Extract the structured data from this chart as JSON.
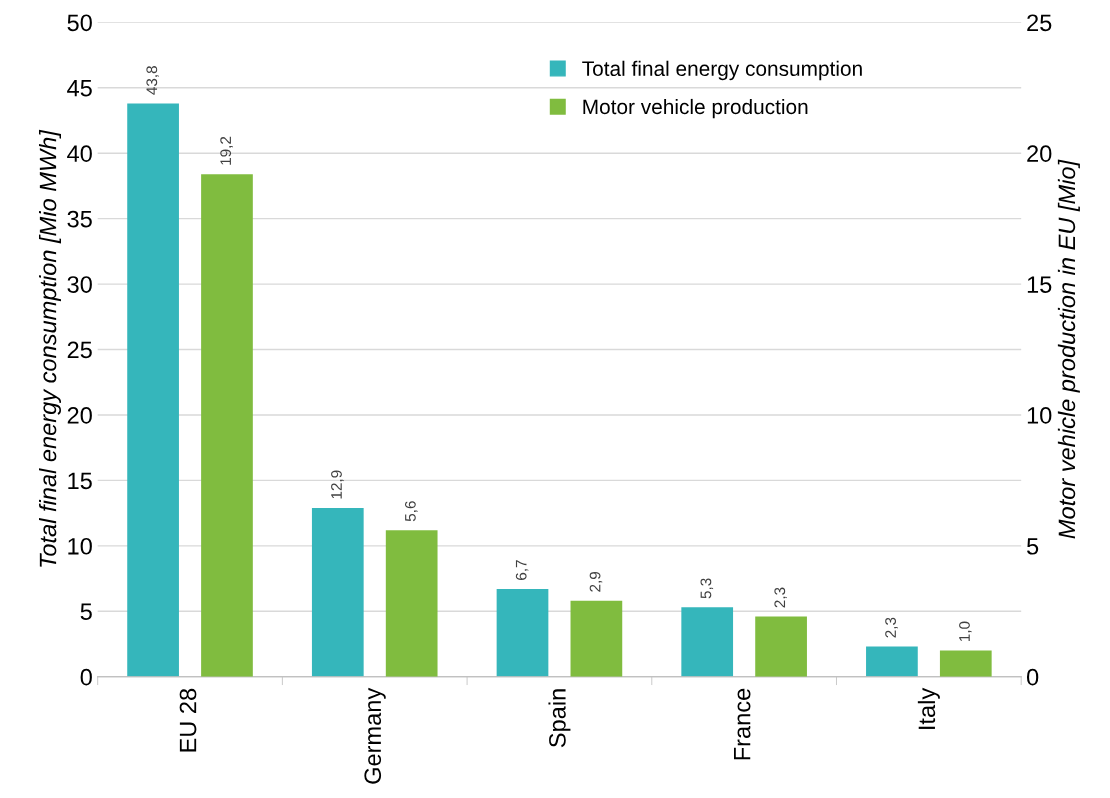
{
  "chart_data": {
    "type": "bar",
    "ylabel": "Total final energy consumption [Mio MWh]",
    "y2label": "Motor vehicle production in EU [Mio]",
    "categories": [
      "EU 28",
      "Germany",
      "Spain",
      "France",
      "Italy"
    ],
    "series": [
      {
        "name": "Total final energy consumption",
        "color": "#35b6bb",
        "values": [
          43.8,
          12.9,
          6.7,
          5.3,
          2.3
        ],
        "value_labels": [
          "43,8",
          "12,9",
          "6,7",
          "5,3",
          "2,3"
        ]
      },
      {
        "name": "Motor vehicle production",
        "color": "#80bc3f",
        "axis": "y2",
        "values": [
          19.2,
          5.6,
          2.9,
          2.3,
          1.0
        ],
        "value_labels": [
          "19,2",
          "5,6",
          "2,9",
          "2,3",
          "1,0"
        ]
      }
    ],
    "ylim": [
      0,
      50
    ],
    "yticks": [
      0,
      5,
      10,
      15,
      20,
      25,
      30,
      35,
      40,
      45,
      50
    ],
    "y2lim": [
      0,
      25
    ],
    "y2ticks": [
      0,
      5,
      10,
      15,
      20,
      25
    ],
    "grid": "y",
    "legend": "top right"
  }
}
